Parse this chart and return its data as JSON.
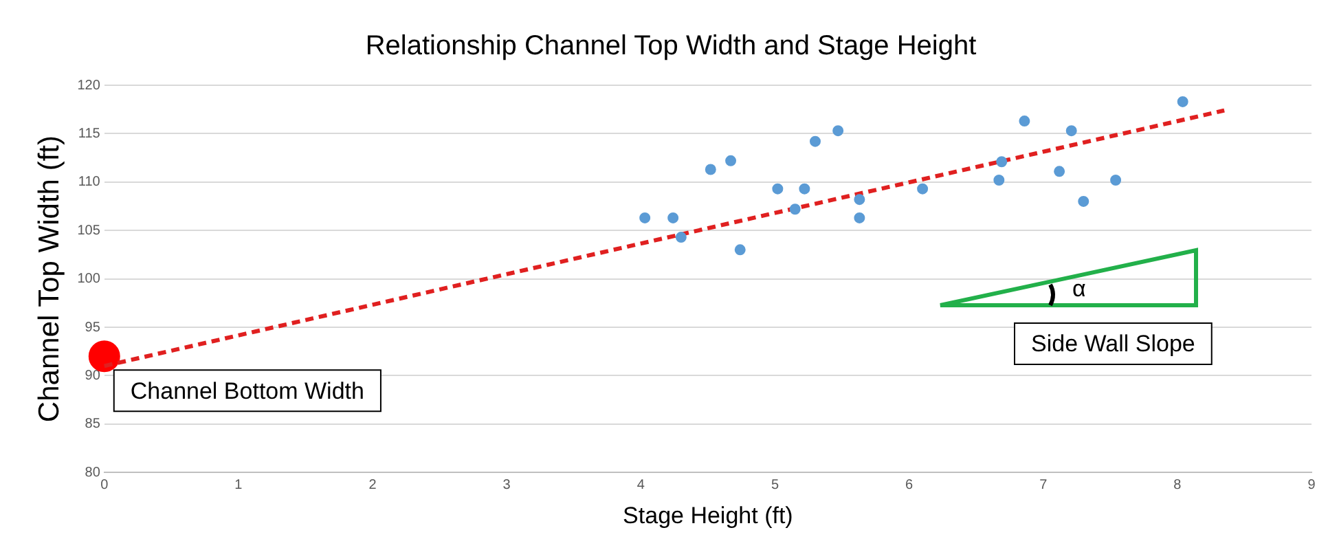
{
  "chart_data": {
    "type": "scatter",
    "title": "Relationship Channel Top Width and Stage Height",
    "xlabel": "Stage Height (ft)",
    "ylabel": "Channel Top Width (ft)",
    "xlim": [
      0,
      9
    ],
    "xticks": [
      0,
      1,
      2,
      3,
      4,
      5,
      6,
      7,
      8,
      9
    ],
    "ylim": [
      80,
      120
    ],
    "yticks": [
      80,
      85,
      90,
      95,
      100,
      105,
      110,
      115,
      120
    ],
    "grid": "y",
    "legend": false,
    "marker": "circle",
    "series": [
      {
        "color": "#5b9bd5",
        "x": [
          4.03,
          4.24,
          4.3,
          4.52,
          4.67,
          4.74,
          5.02,
          5.15,
          5.22,
          5.3,
          5.47,
          5.63,
          5.63,
          6.1,
          6.67,
          6.69,
          6.86,
          7.12,
          7.21,
          7.3,
          7.54,
          8.04
        ],
        "values": [
          106.3,
          106.3,
          104.3,
          111.3,
          112.2,
          103.0,
          109.3,
          107.2,
          109.3,
          114.2,
          115.3,
          108.2,
          106.3,
          109.3,
          110.2,
          112.1,
          116.3,
          111.1,
          115.3,
          108.0,
          110.2,
          118.3
        ]
      },
      {
        "type": "line",
        "color": "#e02020",
        "line_style": "dashed",
        "marker": "none",
        "x": [
          0,
          8.35
        ],
        "values": [
          91,
          117.4
        ]
      },
      {
        "color": "#ff0000",
        "x": [
          0
        ],
        "values": [
          92
        ]
      }
    ],
    "annotations": [
      {
        "text": "Channel Bottom Width",
        "x": 0,
        "y": 92
      },
      "Side Wall Slope",
      "α"
    ]
  }
}
